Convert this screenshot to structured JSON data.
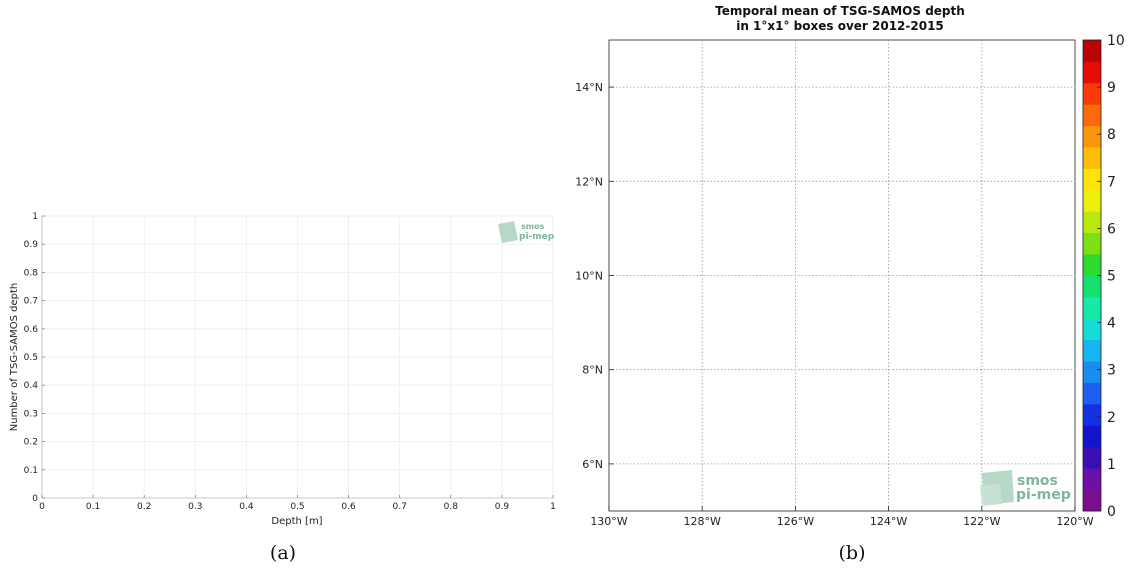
{
  "captions": {
    "a": "(a)",
    "b": "(b)"
  },
  "logo": {
    "line1": "smos",
    "line2": "pi-mep",
    "color": "#7fb59b"
  },
  "chart_data": [
    {
      "type": "line",
      "title": "",
      "xlabel": "Depth [m]",
      "ylabel": "Number of TSG-SAMOS depth",
      "xlim": [
        0,
        1
      ],
      "ylim": [
        0,
        1
      ],
      "x_ticks": [
        "0",
        "0.1",
        "0.2",
        "0.3",
        "0.4",
        "0.5",
        "0.6",
        "0.7",
        "0.8",
        "0.9",
        "1"
      ],
      "y_ticks": [
        "0",
        "0.1",
        "0.2",
        "0.3",
        "0.4",
        "0.5",
        "0.6",
        "0.7",
        "0.8",
        "0.9",
        "1"
      ],
      "grid": true,
      "series": []
    },
    {
      "type": "heatmap",
      "title": "Temporal mean of TSG-SAMOS depth",
      "subtitle": "in 1°x1° boxes over 2012-2015",
      "xlim": [
        -130,
        -120
      ],
      "ylim": [
        5,
        15
      ],
      "x_ticks": [
        "130°W",
        "128°W",
        "126°W",
        "124°W",
        "122°W",
        "120°W"
      ],
      "y_ticks": [
        "6°N",
        "8°N",
        "10°N",
        "12°N",
        "14°N"
      ],
      "grid": true,
      "values": [],
      "colorbar": {
        "range": [
          0,
          10
        ],
        "ticks": [
          "0",
          "1",
          "2",
          "3",
          "4",
          "5",
          "6",
          "7",
          "8",
          "9",
          "10"
        ],
        "colors": [
          "#7b0f91",
          "#6a0fa8",
          "#3a10b6",
          "#1414cc",
          "#1432e4",
          "#1e5fef",
          "#1a8ef0",
          "#18b6f0",
          "#16dcd8",
          "#16e9a8",
          "#16e070",
          "#2cdc2c",
          "#7ce014",
          "#b8e80e",
          "#ecf00c",
          "#fde30a",
          "#fbbf0a",
          "#fb960a",
          "#fb6a08",
          "#f63a06",
          "#e40c04",
          "#b80404"
        ]
      }
    }
  ]
}
